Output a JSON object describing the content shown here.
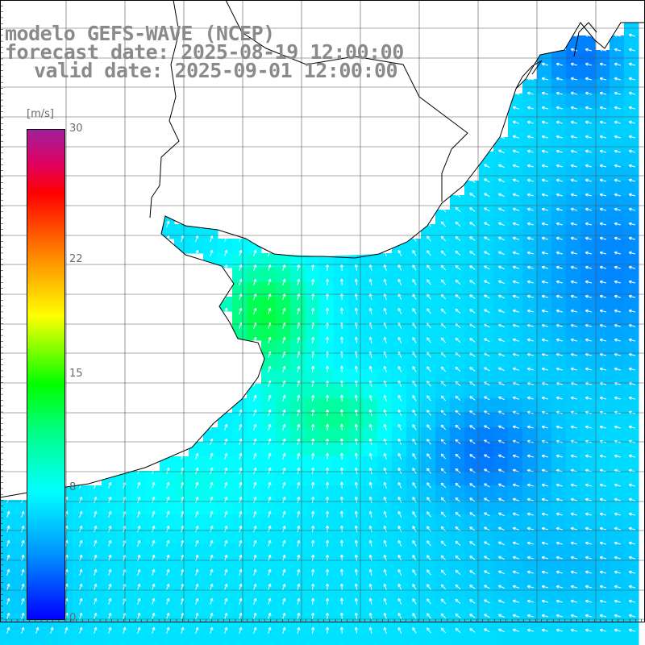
{
  "title": {
    "line1": "modelo GEFS-WAVE (NCEP)",
    "line2": "forecast date: 2025-08-19 12:00:00",
    "line3": "valid date: 2025-09-01 12:00:00"
  },
  "colorbar": {
    "unit": "[m/s]",
    "ticks": [
      {
        "label": "30",
        "value": 30
      },
      {
        "label": "22",
        "value": 22
      },
      {
        "label": "15",
        "value": 15
      },
      {
        "label": "8",
        "value": 8
      },
      {
        "label": "0",
        "value": 0
      }
    ],
    "min": 0,
    "max": 30,
    "colors": [
      "#0000ff",
      "#0090ff",
      "#00ffff",
      "#00ff00",
      "#ffff00",
      "#ff8000",
      "#ff0000",
      "#a0209c"
    ]
  },
  "map": {
    "variable": "wind speed and direction",
    "land_color": "#ffffff",
    "grid_color": "#555555",
    "coastline_color": "#000000",
    "arrow_color": "#ffffff",
    "prevailing_direction": "from south-east / east"
  }
}
